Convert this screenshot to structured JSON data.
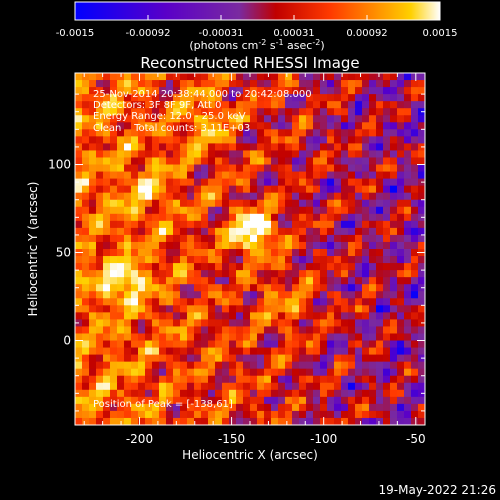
{
  "colorbar": {
    "ticks": [
      "-0.0015",
      "-0.00092",
      "-0.00031",
      "0.00031",
      "0.00092",
      "0.0015"
    ],
    "unit_main": "(photons cm",
    "unit_exp1": "-2",
    "unit_mid": " s",
    "unit_exp2": "-1",
    "unit_end": " asec",
    "unit_exp3": "-2",
    "unit_close": ")"
  },
  "title": "Reconstructed RHESSI Image",
  "info": {
    "line1": "25-Nov-2014 20:38:44.000 to 20:42:08.000",
    "line2": "Detectors: 3F 8F 9F, Att 0",
    "line3": "Energy Range: 12.0 - 25.0 keV",
    "line4": "Clean    Total counts: 3.11E+03",
    "peak": "Position of Peak = [-138,61]"
  },
  "axes": {
    "xlabel": "Heliocentric X (arcsec)",
    "ylabel": "Heliocentric Y (arcsec)",
    "x_ticks": [
      "-200",
      "-150",
      "-100",
      "-50"
    ],
    "y_ticks": [
      "0",
      "50",
      "100"
    ],
    "xlim": [
      -235,
      -45
    ],
    "ylim": [
      -48,
      152
    ],
    "x_tick_values": [
      -200,
      -150,
      -100,
      -50
    ],
    "y_tick_values": [
      0,
      50,
      100
    ]
  },
  "peak_position": [
    -138,
    61
  ],
  "footer_date": "19-May-2022 21:26",
  "colormap": [
    "#0000ff",
    "#5a00c8",
    "#7a2aa0",
    "#c00000",
    "#ff3a00",
    "#ff8c00",
    "#ffd000",
    "#ffffff"
  ]
}
